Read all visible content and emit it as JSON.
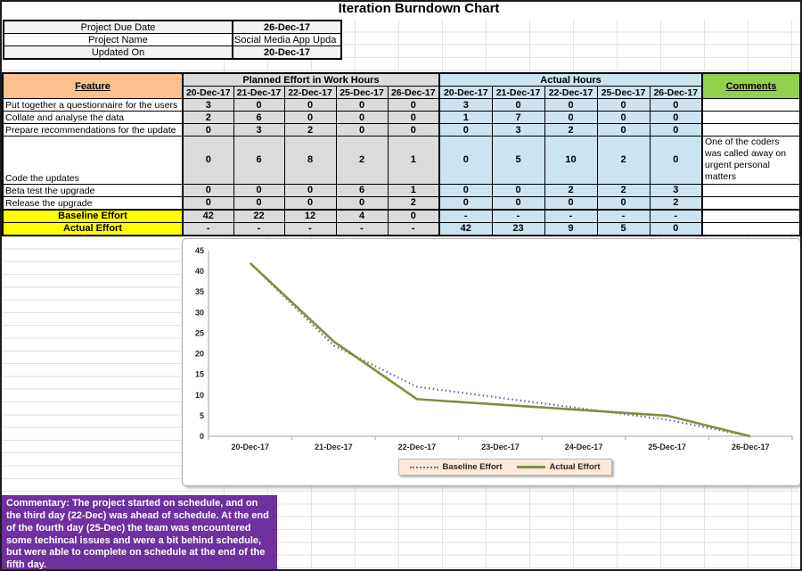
{
  "title": "Iteration Burndown Chart",
  "info_table": {
    "rows": [
      {
        "label": "Project Due Date",
        "value": "26-Dec-17"
      },
      {
        "label": "Project Name",
        "value": "Social Media App Upda"
      },
      {
        "label": "Updated On",
        "value": "20-Dec-17"
      }
    ]
  },
  "main_table": {
    "feature_header": "Feature",
    "planned_header": "Planned Effort in Work Hours",
    "actual_header": "Actual Hours",
    "comments_header": "Comments",
    "dates": [
      "20-Dec-17",
      "21-Dec-17",
      "22-Dec-17",
      "25-Dec-17",
      "26-Dec-17"
    ],
    "rows": [
      {
        "feature": "Put together a questionnaire for the users",
        "planned": [
          "3",
          "0",
          "0",
          "0",
          "0"
        ],
        "actual": [
          "3",
          "0",
          "0",
          "0",
          "0"
        ],
        "comment": "",
        "tall": false
      },
      {
        "feature": "Collate and analyse the data",
        "planned": [
          "2",
          "6",
          "0",
          "0",
          "0"
        ],
        "actual": [
          "1",
          "7",
          "0",
          "0",
          "0"
        ],
        "comment": "",
        "tall": false
      },
      {
        "feature": "Prepare recommendations for the update",
        "planned": [
          "0",
          "3",
          "2",
          "0",
          "0"
        ],
        "actual": [
          "0",
          "3",
          "2",
          "0",
          "0"
        ],
        "comment": "",
        "tall": false
      },
      {
        "feature": "Code the updates",
        "planned": [
          "0",
          "6",
          "8",
          "2",
          "1"
        ],
        "actual": [
          "0",
          "5",
          "10",
          "2",
          "0"
        ],
        "comment": "One of the coders was called away on urgent personal matters",
        "tall": true
      },
      {
        "feature": "Beta test the upgrade",
        "planned": [
          "0",
          "0",
          "0",
          "6",
          "1"
        ],
        "actual": [
          "0",
          "0",
          "2",
          "2",
          "3"
        ],
        "comment": "",
        "tall": false
      },
      {
        "feature": "Release the upgrade",
        "planned": [
          "0",
          "0",
          "0",
          "0",
          "2"
        ],
        "actual": [
          "0",
          "0",
          "0",
          "0",
          "2"
        ],
        "comment": "",
        "tall": false
      }
    ],
    "summary_rows": [
      {
        "label": "Baseline Effort",
        "planned": [
          "42",
          "22",
          "12",
          "4",
          "0"
        ],
        "actual": [
          "-",
          "-",
          "-",
          "-",
          "-"
        ]
      },
      {
        "label": "Actual Effort",
        "planned": [
          "-",
          "-",
          "-",
          "-",
          "-"
        ],
        "actual": [
          "42",
          "23",
          "9",
          "5",
          "0"
        ]
      }
    ]
  },
  "chart_data": {
    "type": "line",
    "x": [
      "20-Dec-17",
      "21-Dec-17",
      "22-Dec-17",
      "23-Dec-17",
      "24-Dec-17",
      "25-Dec-17",
      "26-Dec-17"
    ],
    "series": [
      {
        "name": "Baseline Effort",
        "values": [
          42,
          22,
          12,
          null,
          null,
          4,
          0
        ],
        "color": "#7a5ca8",
        "style": "dotted"
      },
      {
        "name": "Actual Effort",
        "values": [
          42,
          23,
          9,
          null,
          null,
          5,
          0
        ],
        "color": "#77933c",
        "style": "solid"
      }
    ],
    "ylim": [
      0,
      45
    ],
    "ytick_step": 5,
    "grid": false,
    "legend_position": "bottom"
  },
  "commentary": {
    "text": "Commentary:  The project started on schedule, and on the third day (22-Dec) was ahead of schedule. At the end of the fourth day (25-Dec) the team was encountered some techincal issues and were a bit behind schedule, but were able to complete on schedule at the end of the fifth day."
  },
  "colors": {
    "header_orange": "#fac090",
    "planned_gray": "#dbdbdb",
    "actual_blue": "#cbe4f0",
    "comments_green": "#92d050",
    "summary_yellow": "#ffff00",
    "commentary_purple": "#7030a0",
    "baseline_line": "#7a5ca8",
    "actual_line": "#77933c",
    "legend_bg": "#fce9d9",
    "gridline": "#e2e2e2"
  }
}
